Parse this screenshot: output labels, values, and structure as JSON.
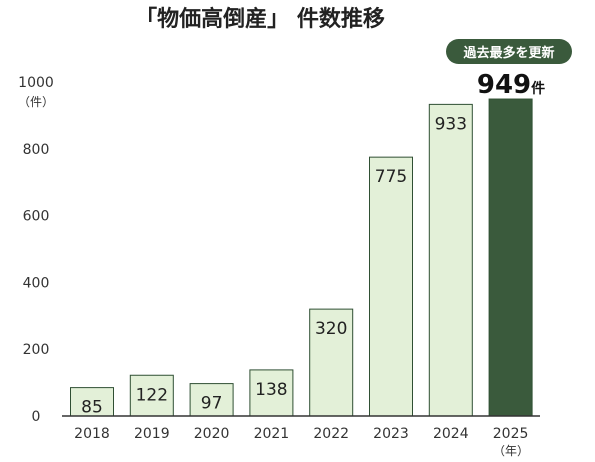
{
  "chart_data": {
    "type": "bar",
    "title": "「物価高倒産」 件数推移",
    "xlabel": "",
    "ylabel": "",
    "y_unit": "（件）",
    "x_unit": "（年）",
    "categories": [
      "2018",
      "2019",
      "2020",
      "2021",
      "2022",
      "2023",
      "2024",
      "2025"
    ],
    "series": [
      {
        "values": [
          85,
          122,
          97,
          138,
          320,
          775,
          933,
          949
        ]
      }
    ],
    "ylim": [
      0,
      1000
    ],
    "yticks": [
      "0",
      "200",
      "400",
      "600",
      "800",
      "1000"
    ],
    "grid": false,
    "legend": "none",
    "highlight": {
      "category": "2025",
      "badge": "過去最多を更新",
      "value_text": "949",
      "value_unit": "件"
    },
    "colors": {
      "bar_fill": "#e3f0d8",
      "bar_stroke": "#2f4f33",
      "highlight": "#3a5a3c",
      "axis": "#333333",
      "text": "#222222"
    }
  }
}
